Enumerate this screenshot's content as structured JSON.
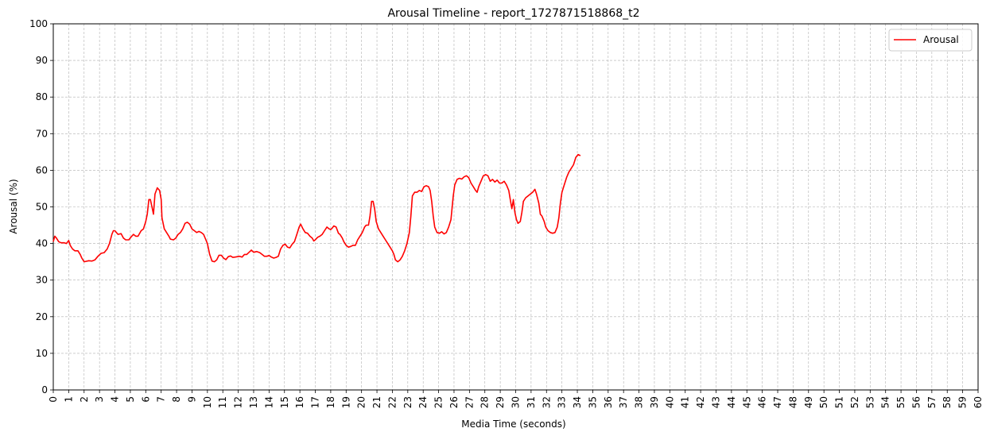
{
  "chart_data": {
    "type": "line",
    "title": "Arousal Timeline - report_1727871518868_t2",
    "xlabel": "Media Time (seconds)",
    "ylabel": "Arousal (%)",
    "xlim": [
      0,
      60
    ],
    "ylim": [
      0,
      100
    ],
    "xticks": [
      0,
      1,
      2,
      3,
      4,
      5,
      6,
      7,
      8,
      9,
      10,
      11,
      12,
      13,
      14,
      15,
      16,
      17,
      18,
      19,
      20,
      21,
      22,
      23,
      24,
      25,
      26,
      27,
      28,
      29,
      30,
      31,
      32,
      33,
      34,
      35,
      36,
      37,
      38,
      39,
      40,
      41,
      42,
      43,
      44,
      45,
      46,
      47,
      48,
      49,
      50,
      51,
      52,
      53,
      54,
      55,
      56,
      57,
      58,
      59,
      60
    ],
    "yticks": [
      0,
      10,
      20,
      30,
      40,
      50,
      60,
      70,
      80,
      90,
      100
    ],
    "grid": true,
    "legend_position": "top-right",
    "series": [
      {
        "name": "Arousal",
        "color": "#ff0000",
        "points": [
          [
            0.0,
            40.5
          ],
          [
            0.1,
            42.0
          ],
          [
            0.2,
            41.5
          ],
          [
            0.35,
            40.5
          ],
          [
            0.5,
            40.2
          ],
          [
            0.7,
            40.2
          ],
          [
            0.85,
            40.0
          ],
          [
            1.0,
            40.8
          ],
          [
            1.1,
            39.5
          ],
          [
            1.25,
            38.5
          ],
          [
            1.4,
            38.0
          ],
          [
            1.6,
            38.0
          ],
          [
            1.75,
            37.0
          ],
          [
            1.85,
            36.0
          ],
          [
            2.0,
            35.0
          ],
          [
            2.3,
            35.3
          ],
          [
            2.5,
            35.2
          ],
          [
            2.7,
            35.5
          ],
          [
            2.9,
            36.5
          ],
          [
            3.1,
            37.3
          ],
          [
            3.3,
            37.5
          ],
          [
            3.5,
            38.5
          ],
          [
            3.65,
            40.0
          ],
          [
            3.8,
            42.5
          ],
          [
            3.9,
            43.5
          ],
          [
            4.0,
            43.5
          ],
          [
            4.2,
            42.5
          ],
          [
            4.4,
            42.7
          ],
          [
            4.55,
            41.5
          ],
          [
            4.7,
            41.0
          ],
          [
            4.9,
            41.0
          ],
          [
            5.05,
            41.8
          ],
          [
            5.2,
            42.5
          ],
          [
            5.35,
            42.0
          ],
          [
            5.5,
            42.0
          ],
          [
            5.7,
            43.5
          ],
          [
            5.85,
            44.0
          ],
          [
            6.0,
            46.0
          ],
          [
            6.1,
            48.0
          ],
          [
            6.2,
            52.0
          ],
          [
            6.3,
            52.0
          ],
          [
            6.4,
            50.0
          ],
          [
            6.5,
            48.0
          ],
          [
            6.6,
            53.5
          ],
          [
            6.75,
            55.2
          ],
          [
            6.9,
            54.5
          ],
          [
            7.0,
            52.0
          ],
          [
            7.05,
            47.0
          ],
          [
            7.2,
            44.0
          ],
          [
            7.35,
            43.0
          ],
          [
            7.5,
            42.0
          ],
          [
            7.6,
            41.2
          ],
          [
            7.8,
            41.0
          ],
          [
            7.95,
            41.5
          ],
          [
            8.1,
            42.5
          ],
          [
            8.25,
            43.0
          ],
          [
            8.4,
            44.0
          ],
          [
            8.55,
            45.5
          ],
          [
            8.7,
            45.8
          ],
          [
            8.85,
            45.3
          ],
          [
            9.0,
            44.0
          ],
          [
            9.15,
            43.5
          ],
          [
            9.3,
            43.0
          ],
          [
            9.45,
            43.3
          ],
          [
            9.6,
            43.0
          ],
          [
            9.75,
            42.5
          ],
          [
            9.9,
            41.0
          ],
          [
            10.0,
            40.0
          ],
          [
            10.15,
            37.0
          ],
          [
            10.3,
            35.2
          ],
          [
            10.45,
            35.0
          ],
          [
            10.6,
            35.5
          ],
          [
            10.75,
            36.8
          ],
          [
            10.9,
            36.8
          ],
          [
            11.05,
            36.0
          ],
          [
            11.2,
            35.6
          ],
          [
            11.35,
            36.4
          ],
          [
            11.5,
            36.6
          ],
          [
            11.65,
            36.2
          ],
          [
            11.8,
            36.3
          ],
          [
            11.95,
            36.4
          ],
          [
            12.1,
            36.5
          ],
          [
            12.25,
            36.3
          ],
          [
            12.4,
            37.0
          ],
          [
            12.55,
            37.0
          ],
          [
            12.7,
            37.6
          ],
          [
            12.85,
            38.2
          ],
          [
            13.0,
            37.6
          ],
          [
            13.2,
            37.8
          ],
          [
            13.4,
            37.5
          ],
          [
            13.55,
            37.0
          ],
          [
            13.7,
            36.5
          ],
          [
            13.85,
            36.5
          ],
          [
            14.0,
            36.7
          ],
          [
            14.15,
            36.3
          ],
          [
            14.3,
            36.0
          ],
          [
            14.45,
            36.2
          ],
          [
            14.6,
            36.5
          ],
          [
            14.75,
            38.5
          ],
          [
            14.9,
            39.5
          ],
          [
            15.05,
            39.8
          ],
          [
            15.2,
            39.0
          ],
          [
            15.35,
            38.8
          ],
          [
            15.5,
            39.8
          ],
          [
            15.65,
            40.5
          ],
          [
            15.8,
            42.5
          ],
          [
            15.95,
            44.5
          ],
          [
            16.05,
            45.3
          ],
          [
            16.2,
            44.0
          ],
          [
            16.35,
            43.0
          ],
          [
            16.5,
            42.8
          ],
          [
            16.65,
            42.0
          ],
          [
            16.8,
            41.5
          ],
          [
            16.9,
            40.7
          ],
          [
            17.0,
            41.0
          ],
          [
            17.15,
            41.7
          ],
          [
            17.3,
            42.0
          ],
          [
            17.45,
            42.5
          ],
          [
            17.6,
            43.5
          ],
          [
            17.75,
            44.5
          ],
          [
            17.9,
            44.0
          ],
          [
            18.0,
            43.8
          ],
          [
            18.1,
            44.2
          ],
          [
            18.2,
            44.8
          ],
          [
            18.35,
            44.5
          ],
          [
            18.5,
            42.8
          ],
          [
            18.6,
            42.5
          ],
          [
            18.75,
            41.5
          ],
          [
            18.85,
            40.5
          ],
          [
            19.0,
            39.5
          ],
          [
            19.15,
            39.0
          ],
          [
            19.3,
            39.2
          ],
          [
            19.45,
            39.5
          ],
          [
            19.6,
            39.5
          ],
          [
            19.75,
            41.0
          ],
          [
            19.9,
            42.0
          ],
          [
            20.05,
            43.0
          ],
          [
            20.2,
            44.5
          ],
          [
            20.3,
            45.0
          ],
          [
            20.45,
            45.0
          ],
          [
            20.55,
            47.5
          ],
          [
            20.65,
            51.5
          ],
          [
            20.75,
            51.5
          ],
          [
            20.85,
            49.5
          ],
          [
            20.95,
            46.0
          ],
          [
            21.1,
            44.0
          ],
          [
            21.25,
            43.0
          ],
          [
            21.4,
            42.0
          ],
          [
            21.55,
            41.0
          ],
          [
            21.7,
            40.0
          ],
          [
            21.85,
            39.0
          ],
          [
            22.0,
            38.0
          ],
          [
            22.1,
            37.0
          ],
          [
            22.2,
            35.5
          ],
          [
            22.35,
            35.0
          ],
          [
            22.5,
            35.5
          ],
          [
            22.65,
            36.5
          ],
          [
            22.8,
            38.0
          ],
          [
            22.95,
            40.0
          ],
          [
            23.1,
            43.0
          ],
          [
            23.2,
            47.5
          ],
          [
            23.3,
            53.0
          ],
          [
            23.45,
            54.0
          ],
          [
            23.6,
            54.0
          ],
          [
            23.75,
            54.5
          ],
          [
            23.9,
            54.2
          ],
          [
            24.05,
            55.5
          ],
          [
            24.2,
            55.8
          ],
          [
            24.35,
            55.5
          ],
          [
            24.45,
            54.5
          ],
          [
            24.55,
            51.5
          ],
          [
            24.65,
            47.5
          ],
          [
            24.75,
            44.5
          ],
          [
            24.9,
            43.0
          ],
          [
            25.05,
            42.8
          ],
          [
            25.2,
            43.2
          ],
          [
            25.35,
            42.6
          ],
          [
            25.5,
            43.0
          ],
          [
            25.65,
            44.5
          ],
          [
            25.8,
            46.5
          ],
          [
            25.95,
            53.0
          ],
          [
            26.05,
            56.0
          ],
          [
            26.2,
            57.5
          ],
          [
            26.35,
            57.8
          ],
          [
            26.5,
            57.6
          ],
          [
            26.65,
            58.2
          ],
          [
            26.8,
            58.5
          ],
          [
            26.95,
            58.0
          ],
          [
            27.1,
            56.5
          ],
          [
            27.25,
            55.5
          ],
          [
            27.4,
            54.5
          ],
          [
            27.5,
            54.0
          ],
          [
            27.6,
            55.5
          ],
          [
            27.75,
            57.0
          ],
          [
            27.9,
            58.5
          ],
          [
            28.05,
            58.8
          ],
          [
            28.2,
            58.5
          ],
          [
            28.35,
            57.0
          ],
          [
            28.5,
            57.5
          ],
          [
            28.65,
            56.8
          ],
          [
            28.8,
            57.3
          ],
          [
            28.95,
            56.5
          ],
          [
            29.1,
            56.5
          ],
          [
            29.25,
            57.0
          ],
          [
            29.4,
            56.0
          ],
          [
            29.55,
            54.5
          ],
          [
            29.65,
            52.0
          ],
          [
            29.75,
            49.5
          ],
          [
            29.85,
            52.0
          ],
          [
            29.95,
            48.5
          ],
          [
            30.05,
            46.5
          ],
          [
            30.15,
            45.5
          ],
          [
            30.3,
            46.0
          ],
          [
            30.4,
            48.5
          ],
          [
            30.5,
            51.5
          ],
          [
            30.65,
            52.5
          ],
          [
            30.8,
            53.0
          ],
          [
            30.95,
            53.5
          ],
          [
            31.1,
            54.0
          ],
          [
            31.25,
            54.8
          ],
          [
            31.35,
            53.5
          ],
          [
            31.5,
            51.0
          ],
          [
            31.6,
            48.0
          ],
          [
            31.7,
            47.5
          ],
          [
            31.85,
            46.0
          ],
          [
            31.95,
            44.5
          ],
          [
            32.1,
            43.5
          ],
          [
            32.25,
            43.0
          ],
          [
            32.4,
            42.8
          ],
          [
            32.55,
            43.0
          ],
          [
            32.7,
            44.5
          ],
          [
            32.8,
            47.0
          ],
          [
            32.9,
            51.0
          ],
          [
            33.0,
            54.0
          ],
          [
            33.15,
            56.0
          ],
          [
            33.3,
            58.0
          ],
          [
            33.45,
            59.5
          ],
          [
            33.6,
            60.5
          ],
          [
            33.75,
            61.5
          ],
          [
            33.9,
            63.5
          ],
          [
            34.05,
            64.3
          ],
          [
            34.2,
            64.0
          ]
        ]
      }
    ]
  }
}
